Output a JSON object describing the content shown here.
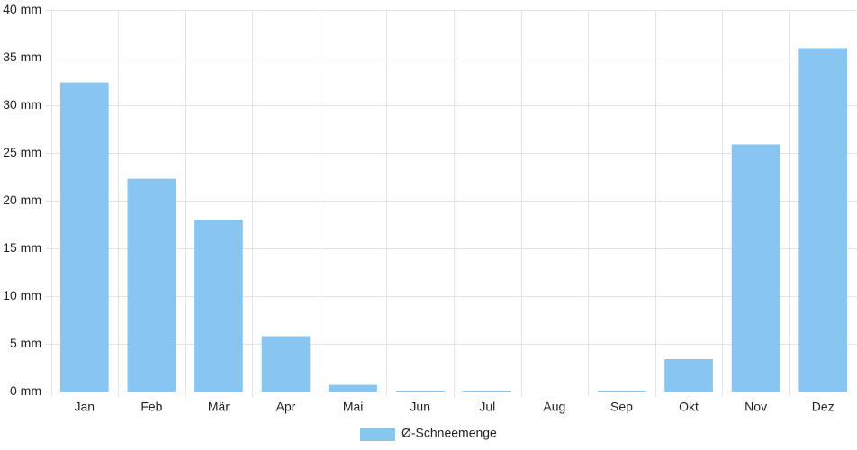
{
  "chart_data": {
    "type": "bar",
    "categories": [
      "Jan",
      "Feb",
      "Mär",
      "Apr",
      "Mai",
      "Jun",
      "Jul",
      "Aug",
      "Sep",
      "Okt",
      "Nov",
      "Dez"
    ],
    "series": [
      {
        "name": "Ø-Schneemenge",
        "color": "#88c6f1",
        "values": [
          32.4,
          22.3,
          18.0,
          5.8,
          0.7,
          0.1,
          0.1,
          0,
          0.1,
          3.4,
          25.9,
          36.0
        ]
      }
    ],
    "ylim": [
      0,
      40
    ],
    "yticks": [
      {
        "value": 0,
        "label": "0 mm"
      },
      {
        "value": 5,
        "label": "5 mm"
      },
      {
        "value": 10,
        "label": "10 mm"
      },
      {
        "value": 15,
        "label": "15 mm"
      },
      {
        "value": 20,
        "label": "20 mm"
      },
      {
        "value": 25,
        "label": "25 mm"
      },
      {
        "value": 30,
        "label": "30 mm"
      },
      {
        "value": 35,
        "label": "35 mm"
      },
      {
        "value": 40,
        "label": "40 mm"
      }
    ],
    "grid": true,
    "legend": "bottom"
  }
}
